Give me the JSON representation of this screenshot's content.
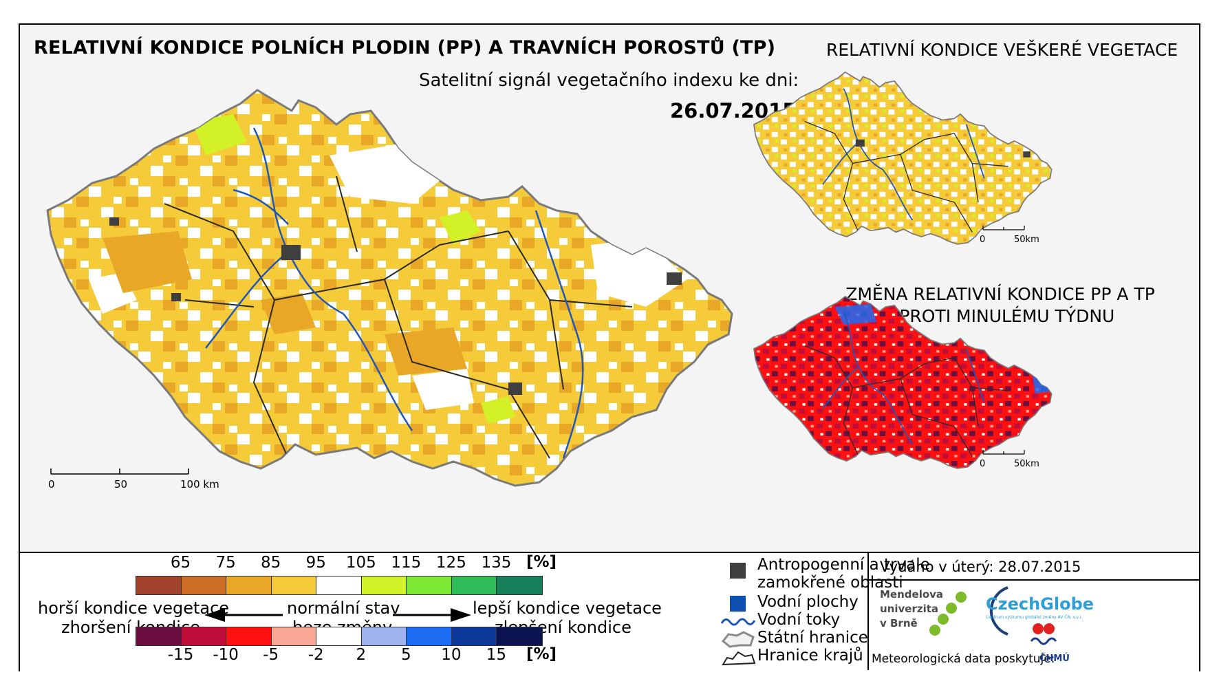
{
  "main_title": "RELATIVNÍ KONDICE POLNÍCH PLODIN (PP) A TRAVNÍCH POROSTŮ (TP)",
  "subtitle": "Satelitní signál vegetačního indexu ke dni:",
  "date": "26.07.2015",
  "right_title": "RELATIVNÍ KONDICE VEŠKERÉ VEGETACE",
  "change_title_line1": "ZMĚNA RELATIVNÍ KONDICE PP A TP",
  "change_title_line2": "OPROTI MINULÉMU TÝDNU",
  "main_scale": {
    "t0": "0",
    "t1": "50",
    "t2": "100 km"
  },
  "small_scale": {
    "t0": "0",
    "t1": "50km"
  },
  "condition_legend": {
    "ticks": [
      "65",
      "75",
      "85",
      "95",
      "105",
      "115",
      "125",
      "135"
    ],
    "unit": "[%]",
    "colors": [
      "#a0422c",
      "#cc6e26",
      "#e9a727",
      "#f6cb3a",
      "#ffffff",
      "#d2f227",
      "#7eea36",
      "#2ebc59",
      "#17805a"
    ]
  },
  "change_legend": {
    "ticks": [
      "-15",
      "-10",
      "-5",
      "-2",
      "2",
      "5",
      "10",
      "15"
    ],
    "unit": "[%]",
    "colors": [
      "#6b0f40",
      "#c00d3a",
      "#ff1010",
      "#f9a896",
      "#ffffff",
      "#9fb4ef",
      "#1e6cf4",
      "#0d3a9a",
      "#0b1450"
    ]
  },
  "labels": {
    "worse_condition": "horší kondice vegetace",
    "worse_change": "zhoršení kondice",
    "normal": "normální stav",
    "no_change": "beze změny",
    "better_condition": "lepší kondice vegetace",
    "better_change": "zlepšení kondice"
  },
  "map_legend": [
    {
      "text1": "Antropogenní a trvale",
      "text2": "zamokřené oblasti",
      "color": "#3f3f3f"
    },
    {
      "text1": "Vodní plochy",
      "color": "#0d4fb0"
    },
    {
      "text1": "Vodní toky",
      "color": "#1f57b8"
    },
    {
      "text1": "Státní hranice",
      "color": "#8a8a8a"
    },
    {
      "text1": "Hranice krajů",
      "color": "#222222"
    }
  ],
  "issued": "Vydáno v úterý: 28.07.2015",
  "mendel": {
    "l1": "Mendelova",
    "l2": "univerzita",
    "l3": "v Brně"
  },
  "czechglobe": {
    "name": "CzechGlobe",
    "sub": "Centrum výzkumu globální změny AV ČR, v.v.i."
  },
  "meteo_note": "Meteorologická data poskytuje:",
  "chmu": "ČHMÚ"
}
